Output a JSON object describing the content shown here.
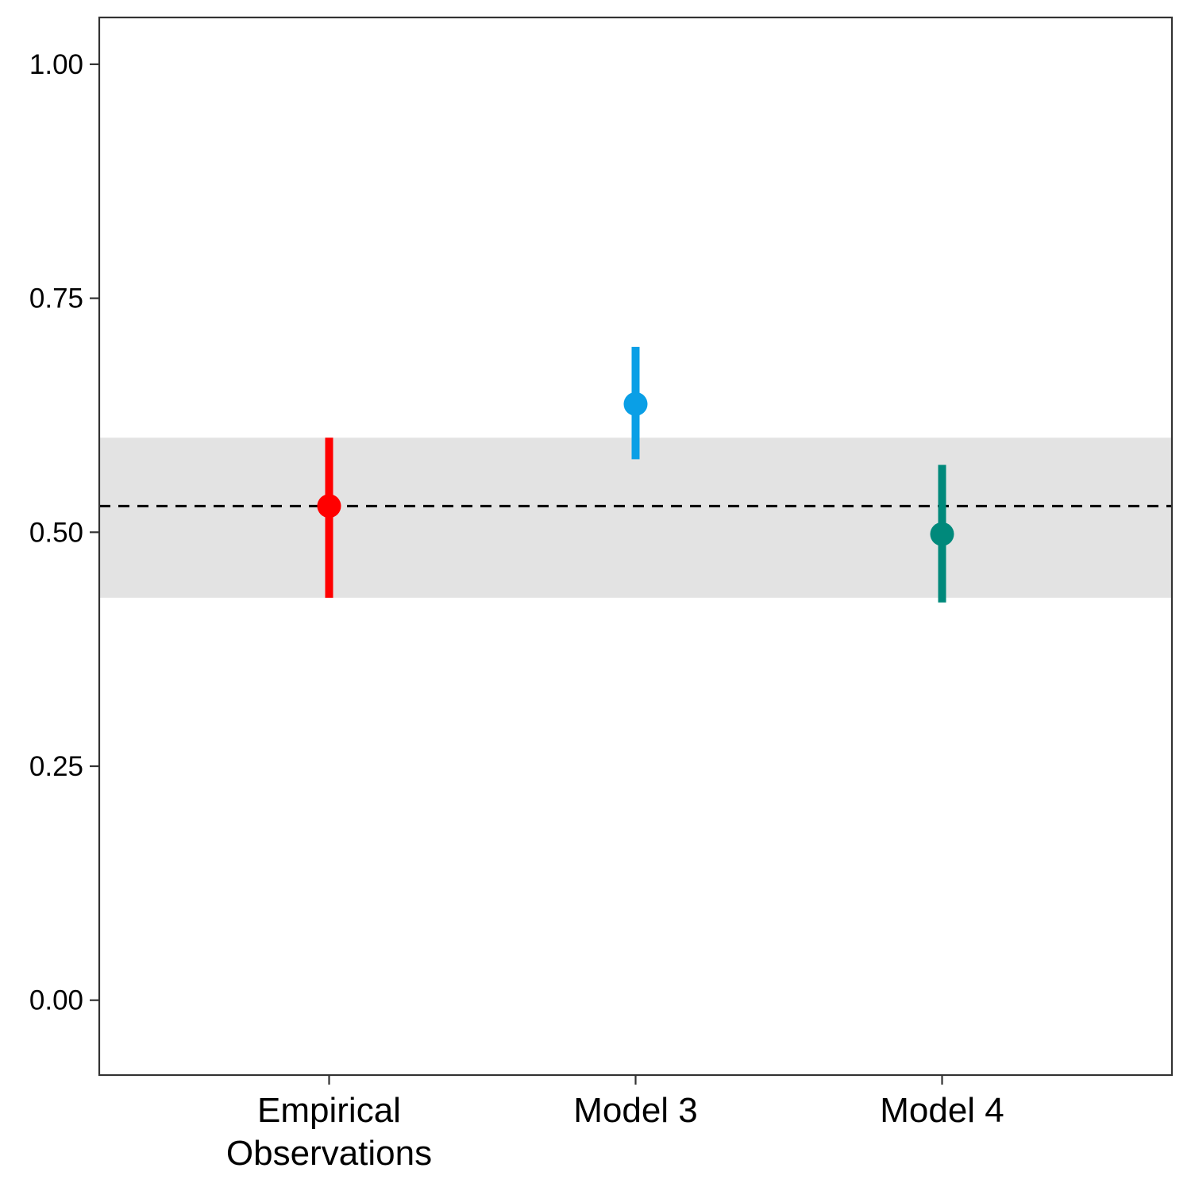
{
  "chart_data": {
    "type": "pointrange",
    "title": "",
    "xlabel": "",
    "ylabel": "",
    "categories": [
      [
        "Empirical",
        "Observations"
      ],
      [
        "Model 3"
      ],
      [
        "Model 4"
      ]
    ],
    "points": [
      {
        "category": "Empirical Observations",
        "value": 0.528,
        "lower": 0.43,
        "upper": 0.601,
        "color": "#FF0000"
      },
      {
        "category": "Model 3",
        "value": 0.637,
        "lower": 0.578,
        "upper": 0.698,
        "color": "#0A9FE6"
      },
      {
        "category": "Model 4",
        "value": 0.498,
        "lower": 0.425,
        "upper": 0.572,
        "color": "#00897B"
      }
    ],
    "reference_line": {
      "value": 0.528,
      "style": "dashed",
      "color": "#000000"
    },
    "reference_band": {
      "lower": 0.43,
      "upper": 0.601,
      "color": "#E3E3E3"
    },
    "ylim": [
      -0.08,
      1.05
    ],
    "yticks": [
      0.0,
      0.25,
      0.5,
      0.75,
      1.0
    ],
    "ytick_labels": [
      "0.00",
      "0.25",
      "0.50",
      "0.75",
      "1.00"
    ],
    "grid": false,
    "legend": "none"
  }
}
